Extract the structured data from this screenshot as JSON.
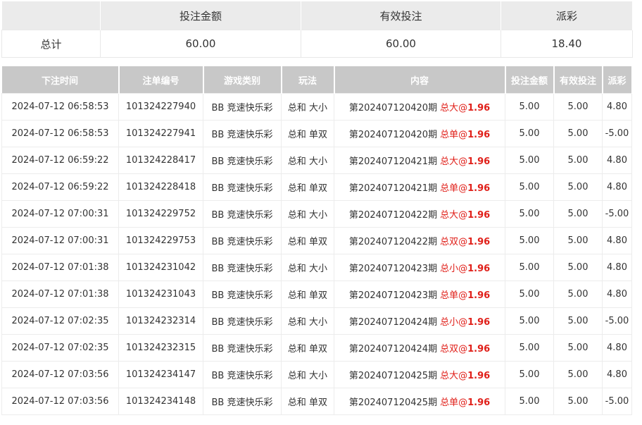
{
  "summary": {
    "headers": [
      "",
      "投注金额",
      "有效投注",
      "派彩"
    ],
    "label": "总计",
    "bet_amount": "60.00",
    "valid_bet": "60.00",
    "payout": "18.40"
  },
  "table": {
    "headers": [
      "下注时间",
      "注单编号",
      "游戏类别",
      "玩法",
      "内容",
      "投注金额",
      "有效投注",
      "派彩"
    ],
    "rows": [
      {
        "time": "2024-07-12 06:58:53",
        "id": "101324227940",
        "game": "BB 竞速快乐彩",
        "play": "总和 大小",
        "period": "第202407120420期",
        "pick": "总大",
        "at": "@",
        "odds": "1.96",
        "amount": "5.00",
        "valid": "5.00",
        "payout": "4.80"
      },
      {
        "time": "2024-07-12 06:58:53",
        "id": "101324227941",
        "game": "BB 竞速快乐彩",
        "play": "总和 单双",
        "period": "第202407120420期",
        "pick": "总单",
        "at": "@",
        "odds": "1.96",
        "amount": "5.00",
        "valid": "5.00",
        "payout": "-5.00"
      },
      {
        "time": "2024-07-12 06:59:22",
        "id": "101324228417",
        "game": "BB 竞速快乐彩",
        "play": "总和 大小",
        "period": "第202407120421期",
        "pick": "总大",
        "at": "@",
        "odds": "1.96",
        "amount": "5.00",
        "valid": "5.00",
        "payout": "4.80"
      },
      {
        "time": "2024-07-12 06:59:22",
        "id": "101324228418",
        "game": "BB 竞速快乐彩",
        "play": "总和 单双",
        "period": "第202407120421期",
        "pick": "总单",
        "at": "@",
        "odds": "1.96",
        "amount": "5.00",
        "valid": "5.00",
        "payout": "4.80"
      },
      {
        "time": "2024-07-12 07:00:31",
        "id": "101324229752",
        "game": "BB 竞速快乐彩",
        "play": "总和 大小",
        "period": "第202407120422期",
        "pick": "总大",
        "at": "@",
        "odds": "1.96",
        "amount": "5.00",
        "valid": "5.00",
        "payout": "-5.00"
      },
      {
        "time": "2024-07-12 07:00:31",
        "id": "101324229753",
        "game": "BB 竞速快乐彩",
        "play": "总和 单双",
        "period": "第202407120422期",
        "pick": "总双",
        "at": "@",
        "odds": "1.96",
        "amount": "5.00",
        "valid": "5.00",
        "payout": "4.80"
      },
      {
        "time": "2024-07-12 07:01:38",
        "id": "101324231042",
        "game": "BB 竞速快乐彩",
        "play": "总和 大小",
        "period": "第202407120423期",
        "pick": "总小",
        "at": "@",
        "odds": "1.96",
        "amount": "5.00",
        "valid": "5.00",
        "payout": "4.80"
      },
      {
        "time": "2024-07-12 07:01:38",
        "id": "101324231043",
        "game": "BB 竞速快乐彩",
        "play": "总和 单双",
        "period": "第202407120423期",
        "pick": "总单",
        "at": "@",
        "odds": "1.96",
        "amount": "5.00",
        "valid": "5.00",
        "payout": "4.80"
      },
      {
        "time": "2024-07-12 07:02:35",
        "id": "101324232314",
        "game": "BB 竞速快乐彩",
        "play": "总和 大小",
        "period": "第202407120424期",
        "pick": "总小",
        "at": "@",
        "odds": "1.96",
        "amount": "5.00",
        "valid": "5.00",
        "payout": "-5.00"
      },
      {
        "time": "2024-07-12 07:02:35",
        "id": "101324232315",
        "game": "BB 竞速快乐彩",
        "play": "总和 单双",
        "period": "第202407120424期",
        "pick": "总双",
        "at": "@",
        "odds": "1.96",
        "amount": "5.00",
        "valid": "5.00",
        "payout": "4.80"
      },
      {
        "time": "2024-07-12 07:03:56",
        "id": "101324234147",
        "game": "BB 竞速快乐彩",
        "play": "总和 大小",
        "period": "第202407120425期",
        "pick": "总大",
        "at": "@",
        "odds": "1.96",
        "amount": "5.00",
        "valid": "5.00",
        "payout": "4.80"
      },
      {
        "time": "2024-07-12 07:03:56",
        "id": "101324234148",
        "game": "BB 竞速快乐彩",
        "play": "总和 单双",
        "period": "第202407120425期",
        "pick": "总单",
        "at": "@",
        "odds": "1.96",
        "amount": "5.00",
        "valid": "5.00",
        "payout": "-5.00"
      }
    ]
  },
  "colors": {
    "pick": "#e0201a",
    "negative": "#e05060",
    "header_bg": "#c8c8c8"
  }
}
